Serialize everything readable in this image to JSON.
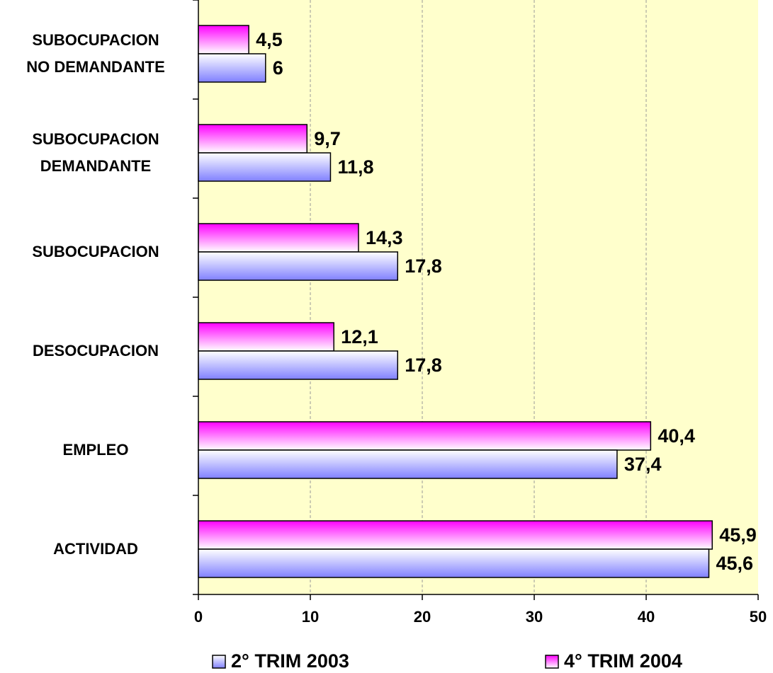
{
  "chart_data": {
    "type": "hbar",
    "categories": [
      "SUBOCUPACION\nNO DEMANDANTE",
      "SUBOCUPACION\nDEMANDANTE",
      "SUBOCUPACION",
      "DESOCUPACION",
      "EMPLEO",
      "ACTIVIDAD"
    ],
    "series": [
      {
        "name": "2° TRIM 2003",
        "color": "#8080ff",
        "values": [
          6,
          11.8,
          17.8,
          17.8,
          37.4,
          45.6
        ],
        "value_labels": [
          "6",
          "11,8",
          "17,8",
          "17,8",
          "37,4",
          "45,6"
        ]
      },
      {
        "name": "4° TRIM 2004",
        "color": "#ff00ff",
        "values": [
          4.5,
          9.7,
          14.3,
          12.1,
          40.4,
          45.9
        ],
        "value_labels": [
          "4,5",
          "9,7",
          "14,3",
          "12,1",
          "40,4",
          "45,9"
        ]
      }
    ],
    "xlim": [
      0,
      50
    ],
    "xticks": [
      0,
      10,
      20,
      30,
      40,
      50
    ],
    "grid": true,
    "legend": "bottom"
  }
}
